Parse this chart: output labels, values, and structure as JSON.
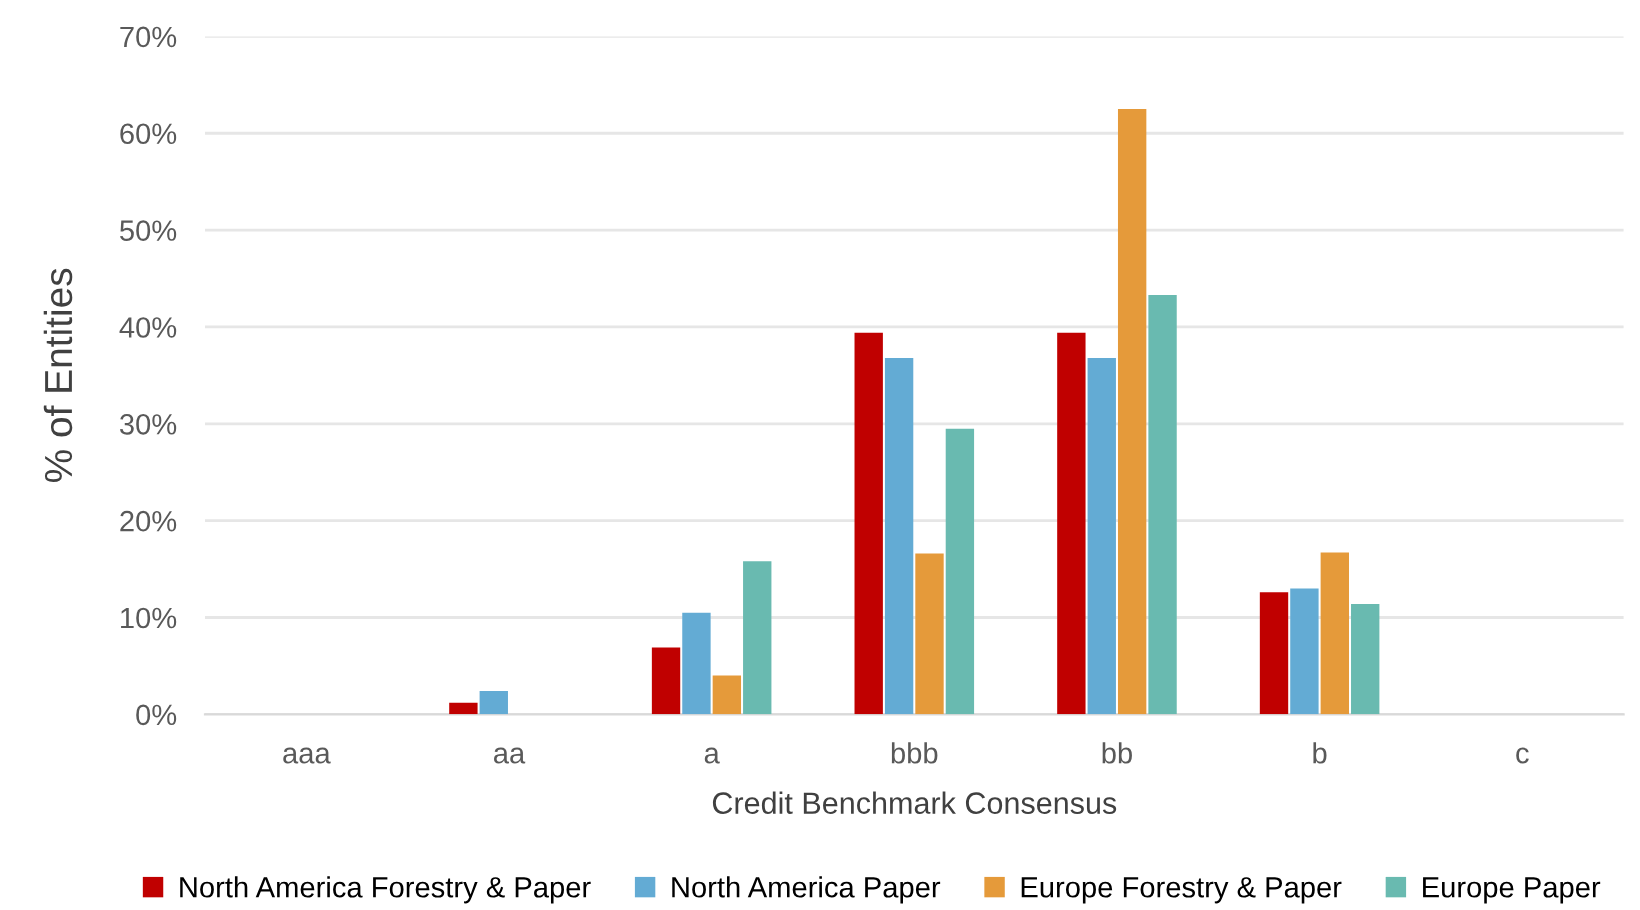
{
  "chart_data": {
    "type": "bar",
    "xlabel": "Credit Benchmark Consensus",
    "ylabel": "% of Entities",
    "categories": [
      "aaa",
      "aa",
      "a",
      "bbb",
      "bb",
      "b",
      "c"
    ],
    "series": [
      {
        "name": "North America Forestry & Paper",
        "color": "#c00000",
        "values": [
          0,
          1.2,
          6.9,
          39.4,
          39.4,
          12.6,
          0
        ]
      },
      {
        "name": "North America Paper",
        "color": "#63abd4",
        "values": [
          0,
          2.4,
          10.5,
          36.8,
          36.8,
          13.0,
          0
        ]
      },
      {
        "name": "Europe Forestry & Paper",
        "color": "#e59a3a",
        "values": [
          0,
          0,
          4.0,
          16.6,
          62.5,
          16.7,
          0
        ]
      },
      {
        "name": "Europe Paper",
        "color": "#69bab0",
        "values": [
          0,
          0,
          15.8,
          29.5,
          43.3,
          11.4,
          0
        ]
      }
    ],
    "ylim": [
      0,
      70
    ],
    "yticks": [
      {
        "value": 0,
        "label": "0%"
      },
      {
        "value": 10,
        "label": "10%"
      },
      {
        "value": 20,
        "label": "20%"
      },
      {
        "value": 30,
        "label": "30%"
      },
      {
        "value": 40,
        "label": "40%"
      },
      {
        "value": 50,
        "label": "50%"
      },
      {
        "value": 60,
        "label": "60%"
      },
      {
        "value": 70,
        "label": "70%"
      }
    ],
    "grid": "y",
    "legend": "bottom"
  }
}
